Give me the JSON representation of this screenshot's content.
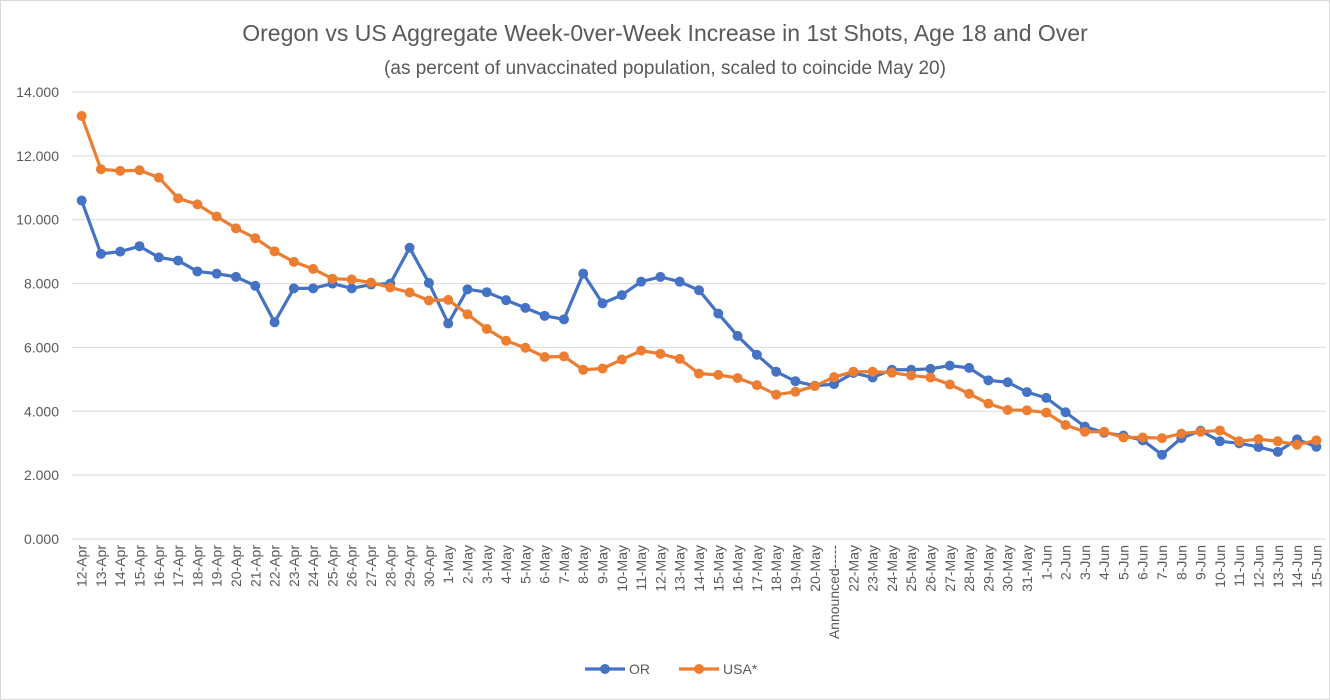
{
  "chart_data": {
    "type": "line",
    "title": "Oregon vs US Aggregate Week-0ver-Week Increase in 1st Shots, Age 18 and Over",
    "subtitle": "(as percent of unvaccinated population, scaled to coincide May 20)",
    "ylim": [
      0,
      14
    ],
    "yticks": [
      "0.000",
      "2.000",
      "4.000",
      "6.000",
      "8.000",
      "10.000",
      "12.000",
      "14.000"
    ],
    "grid": true,
    "legend_position": "bottom",
    "categories": [
      "12-Apr",
      "13-Apr",
      "14-Apr",
      "15-Apr",
      "16-Apr",
      "17-Apr",
      "18-Apr",
      "19-Apr",
      "20-Apr",
      "21-Apr",
      "22-Apr",
      "23-Apr",
      "24-Apr",
      "25-Apr",
      "26-Apr",
      "27-Apr",
      "28-Apr",
      "29-Apr",
      "30-Apr",
      "1-May",
      "2-May",
      "3-May",
      "4-May",
      "5-May",
      "6-May",
      "7-May",
      "8-May",
      "9-May",
      "10-May",
      "11-May",
      "12-May",
      "13-May",
      "14-May",
      "15-May",
      "16-May",
      "17-May",
      "18-May",
      "19-May",
      "20-May",
      "Announced-----",
      "22-May",
      "23-May",
      "24-May",
      "25-May",
      "26-May",
      "27-May",
      "28-May",
      "29-May",
      "30-May",
      "31-May",
      "1-Jun",
      "2-Jun",
      "3-Jun",
      "4-Jun",
      "5-Jun",
      "6-Jun",
      "7-Jun",
      "8-Jun",
      "9-Jun",
      "10-Jun",
      "11-Jun",
      "12-Jun",
      "13-Jun",
      "14-Jun",
      "15-Jun"
    ],
    "series": [
      {
        "name": "OR",
        "color": "#4472c4",
        "values": [
          10.6,
          8.93,
          9.0,
          9.17,
          8.82,
          8.72,
          8.38,
          8.31,
          8.21,
          7.93,
          6.79,
          7.85,
          7.85,
          8.0,
          7.85,
          7.97,
          8.0,
          9.12,
          8.02,
          6.75,
          7.82,
          7.73,
          7.48,
          7.24,
          6.99,
          6.88,
          8.31,
          7.38,
          7.64,
          8.06,
          8.21,
          8.06,
          7.79,
          7.06,
          6.36,
          5.77,
          5.24,
          4.94,
          4.8,
          4.85,
          5.2,
          5.06,
          5.3,
          5.3,
          5.33,
          5.43,
          5.36,
          4.97,
          4.91,
          4.6,
          4.42,
          3.97,
          3.52,
          3.33,
          3.24,
          3.09,
          2.64,
          3.16,
          3.39,
          3.06,
          3.0,
          2.88,
          2.73,
          3.12,
          2.89
        ]
      },
      {
        "name": "USA*",
        "color": "#ed7d31",
        "values": [
          13.25,
          11.58,
          11.53,
          11.55,
          11.32,
          10.67,
          10.48,
          10.1,
          9.73,
          9.42,
          9.01,
          8.68,
          8.46,
          8.15,
          8.13,
          8.03,
          7.88,
          7.72,
          7.47,
          7.49,
          7.04,
          6.58,
          6.21,
          5.99,
          5.7,
          5.72,
          5.3,
          5.34,
          5.62,
          5.9,
          5.8,
          5.64,
          5.18,
          5.14,
          5.04,
          4.82,
          4.52,
          4.61,
          4.79,
          5.07,
          5.24,
          5.24,
          5.21,
          5.12,
          5.06,
          4.84,
          4.55,
          4.24,
          4.04,
          4.03,
          3.96,
          3.57,
          3.36,
          3.36,
          3.18,
          3.18,
          3.16,
          3.3,
          3.36,
          3.4,
          3.06,
          3.13,
          3.06,
          2.95,
          3.09
        ]
      }
    ]
  }
}
